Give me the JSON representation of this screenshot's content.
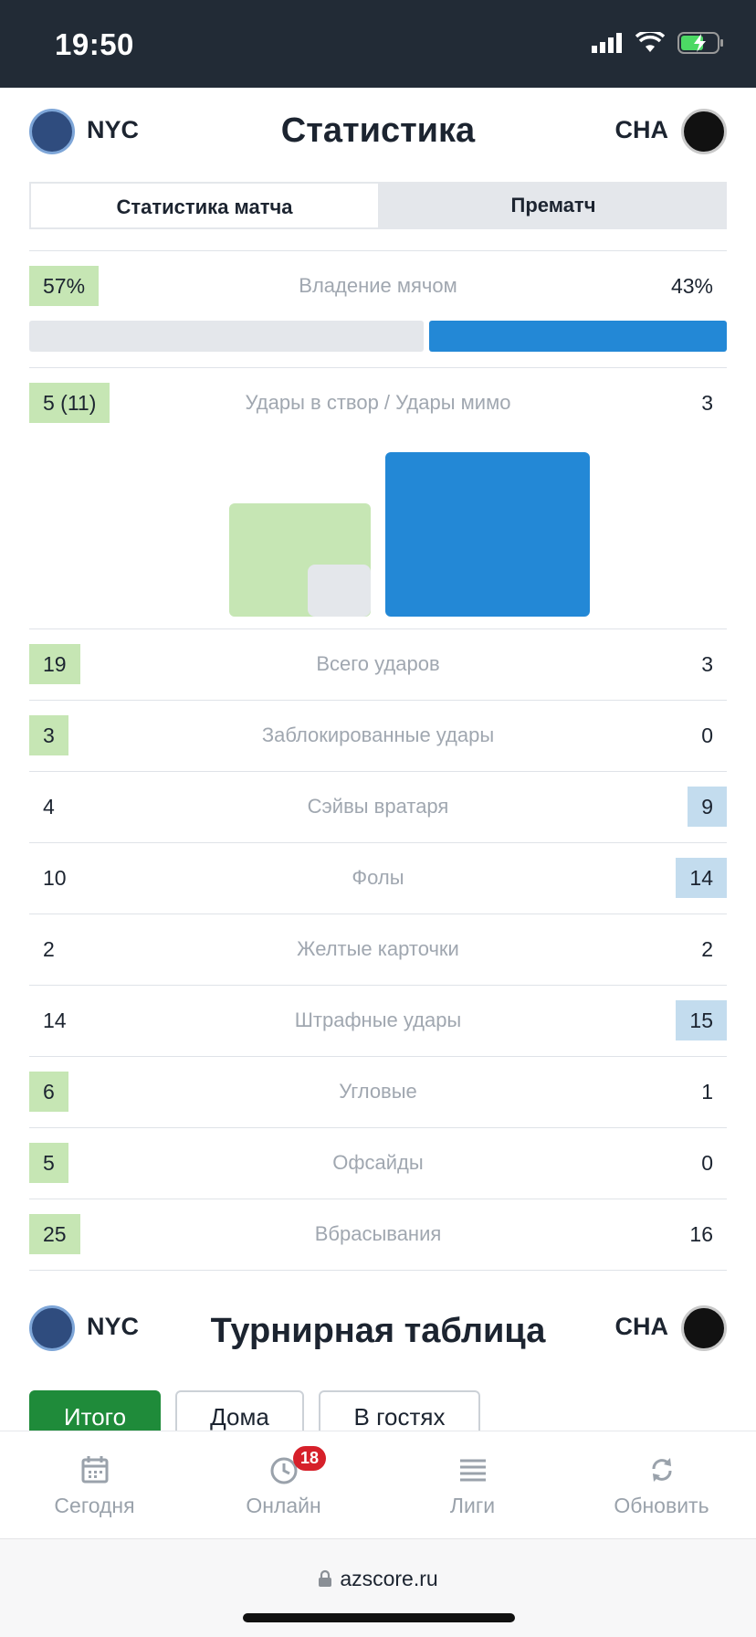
{
  "status_bar": {
    "time": "19:50"
  },
  "stats_section": {
    "title": "Статистика",
    "home_abbr": "NYC",
    "away_abbr": "CHA",
    "tabs": [
      "Статистика матча",
      "Прематч"
    ],
    "active_tab": "Статистика матча",
    "possession": {
      "label": "Владение мячом",
      "home": "57%",
      "away": "43%",
      "home_fraction": 0.57,
      "away_fraction": 0.43
    },
    "shots_on_off": {
      "label": "Удары в створ / Удары мимо",
      "home": "5 (11)",
      "away": "3"
    },
    "rows": [
      {
        "label": "Всего ударов",
        "home": "19",
        "away": "3",
        "leader": "home"
      },
      {
        "label": "Заблокированные удары",
        "home": "3",
        "away": "0",
        "leader": "home"
      },
      {
        "label": "Сэйвы вратаря",
        "home": "4",
        "away": "9",
        "leader": "away"
      },
      {
        "label": "Фолы",
        "home": "10",
        "away": "14",
        "leader": "away"
      },
      {
        "label": "Желтые карточки",
        "home": "2",
        "away": "2",
        "leader": "none"
      },
      {
        "label": "Штрафные удары",
        "home": "14",
        "away": "15",
        "leader": "away"
      },
      {
        "label": "Угловые",
        "home": "6",
        "away": "1",
        "leader": "home"
      },
      {
        "label": "Офсайды",
        "home": "5",
        "away": "0",
        "leader": "home"
      },
      {
        "label": "Вбрасывания",
        "home": "25",
        "away": "16",
        "leader": "home"
      }
    ]
  },
  "standings_section": {
    "title": "Турнирная таблица",
    "home_abbr": "NYC",
    "away_abbr": "CHA",
    "filters": [
      "Итого",
      "Дома",
      "В гостях"
    ],
    "active_filter": "Итого"
  },
  "bottom_nav": {
    "items": [
      {
        "label": "Сегодня",
        "icon": "calendar-icon"
      },
      {
        "label": "Онлайн",
        "icon": "clock-icon",
        "badge": "18"
      },
      {
        "label": "Лиги",
        "icon": "list-icon"
      },
      {
        "label": "Обновить",
        "icon": "refresh-icon"
      }
    ]
  },
  "browser": {
    "url": "azscore.ru"
  },
  "colors": {
    "home_highlight": "#c6e6b4",
    "away_highlight": "#c3dcee",
    "away_bar": "#2388d6",
    "active_filter": "#1f8b3a",
    "badge": "#d6202a"
  }
}
